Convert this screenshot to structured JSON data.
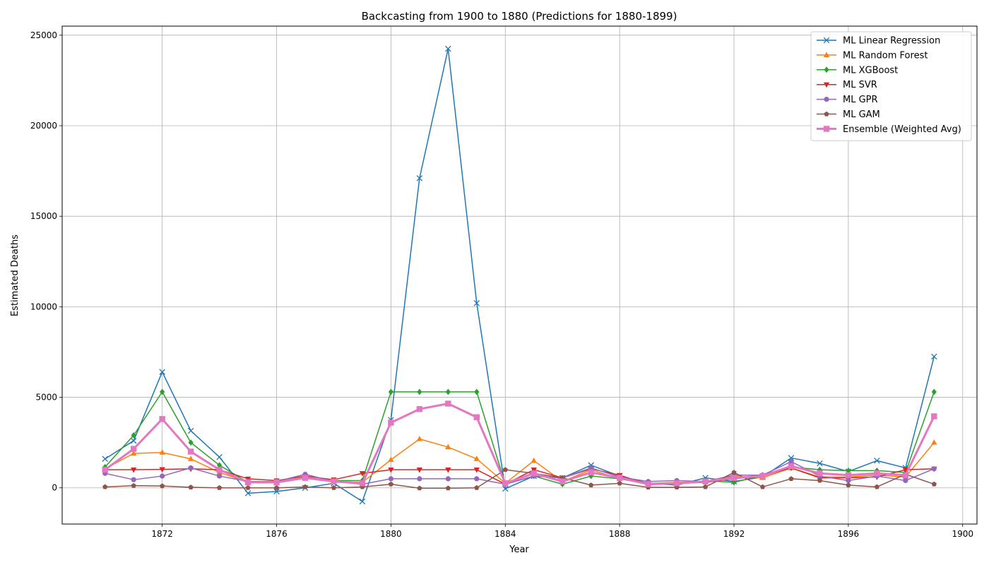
{
  "chart_data": {
    "type": "line",
    "title": "Backcasting from 1900 to 1880 (Predictions for 1880-1899)",
    "xlabel": "Year",
    "ylabel": "Estimated Deaths",
    "xlim": [
      1868.5,
      1900.5
    ],
    "ylim": [
      -2000,
      25500
    ],
    "xticks": [
      1872,
      1876,
      1880,
      1884,
      1888,
      1892,
      1896,
      1900
    ],
    "yticks": [
      0,
      5000,
      10000,
      15000,
      20000,
      25000
    ],
    "grid": true,
    "legend_position": "top-right",
    "x": [
      1870,
      1871,
      1872,
      1873,
      1874,
      1875,
      1876,
      1877,
      1878,
      1879,
      1880,
      1881,
      1882,
      1883,
      1884,
      1885,
      1886,
      1887,
      1888,
      1889,
      1890,
      1891,
      1892,
      1893,
      1894,
      1895,
      1896,
      1897,
      1898,
      1899
    ],
    "series": [
      {
        "name": "ML Linear Regression",
        "color": "#1f77b4",
        "marker": "x",
        "values": [
          1600,
          2600,
          6400,
          3150,
          1700,
          -300,
          -200,
          0,
          250,
          -750,
          3750,
          17100,
          24250,
          10200,
          -50,
          650,
          550,
          1250,
          650,
          250,
          150,
          550,
          350,
          600,
          1650,
          1350,
          900,
          1500,
          1100,
          7250
        ]
      },
      {
        "name": "ML Random Forest",
        "color": "#ff7f0e",
        "marker": "^",
        "values": [
          1050,
          1900,
          1950,
          1600,
          850,
          300,
          300,
          600,
          350,
          300,
          1550,
          2700,
          2250,
          1600,
          250,
          1500,
          350,
          1000,
          500,
          250,
          300,
          350,
          650,
          550,
          1100,
          600,
          600,
          700,
          600,
          2500
        ]
      },
      {
        "name": "ML XGBoost",
        "color": "#2ca02c",
        "marker": "D",
        "values": [
          1150,
          2900,
          5300,
          2500,
          1250,
          300,
          350,
          550,
          400,
          400,
          5300,
          5300,
          5300,
          5300,
          200,
          650,
          200,
          650,
          500,
          200,
          200,
          400,
          300,
          700,
          1150,
          1000,
          950,
          950,
          850,
          5300
        ]
      },
      {
        "name": "ML SVR",
        "color": "#d62728",
        "marker": "v",
        "values": [
          1000,
          1000,
          1020,
          1050,
          1000,
          500,
          400,
          650,
          450,
          800,
          1000,
          1000,
          1000,
          1000,
          200,
          1000,
          550,
          1050,
          700,
          200,
          250,
          300,
          500,
          650,
          1100,
          550,
          550,
          600,
          1000,
          1050
        ]
      },
      {
        "name": "ML GPR",
        "color": "#9467bd",
        "marker": "o",
        "values": [
          800,
          450,
          650,
          1100,
          650,
          350,
          350,
          750,
          350,
          200,
          500,
          500,
          500,
          500,
          200,
          650,
          550,
          1100,
          600,
          350,
          400,
          350,
          700,
          700,
          1450,
          650,
          400,
          650,
          400,
          1050
        ]
      },
      {
        "name": "ML GAM",
        "color": "#8c564b",
        "marker": "p",
        "values": [
          50,
          120,
          100,
          30,
          0,
          0,
          0,
          50,
          0,
          50,
          200,
          -20,
          -20,
          0,
          1000,
          800,
          550,
          150,
          250,
          30,
          30,
          50,
          850,
          50,
          500,
          400,
          150,
          50,
          750,
          200
        ]
      },
      {
        "name": "Ensemble (Weighted Avg)",
        "color": "#e377c2",
        "marker": "s",
        "values": [
          1000,
          2150,
          3800,
          2000,
          1000,
          300,
          300,
          550,
          350,
          250,
          3600,
          4350,
          4650,
          3900,
          250,
          800,
          350,
          850,
          550,
          200,
          250,
          350,
          550,
          650,
          1200,
          800,
          700,
          800,
          700,
          3950
        ]
      }
    ]
  }
}
